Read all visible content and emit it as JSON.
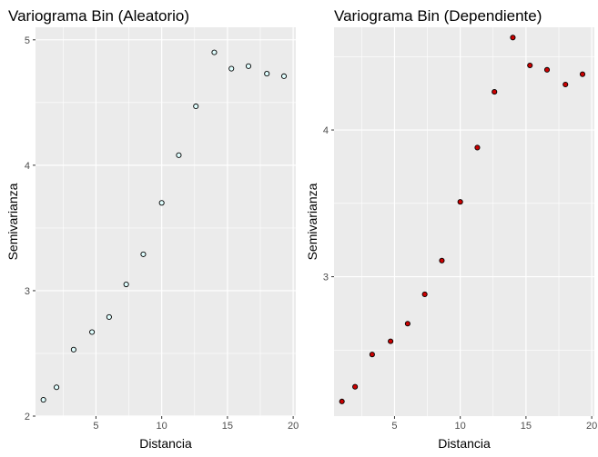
{
  "chart_data": [
    {
      "type": "scatter",
      "title": "Variograma Bin (Aleatorio)",
      "xlabel": "Distancia",
      "ylabel": "Semivarianza",
      "xlim": [
        0.4,
        20.2
      ],
      "ylim": [
        2.0,
        5.1
      ],
      "xticks": [
        5,
        10,
        15,
        20
      ],
      "yticks": [
        2,
        3,
        4,
        5
      ],
      "grid": true,
      "point_fill": "#e0ffff",
      "x": [
        1.0,
        2.0,
        3.3,
        4.7,
        6.0,
        7.3,
        8.6,
        10.0,
        11.3,
        12.6,
        14.0,
        15.3,
        16.6,
        18.0,
        19.3
      ],
      "y": [
        2.13,
        2.23,
        2.53,
        2.67,
        2.79,
        3.05,
        3.29,
        3.7,
        4.08,
        4.47,
        4.9,
        4.77,
        4.79,
        4.73,
        4.71
      ]
    },
    {
      "type": "scatter",
      "title": "Variograma Bin (Dependiente)",
      "xlabel": "Distancia",
      "ylabel": "Semivarianza",
      "xlim": [
        0.4,
        20.2
      ],
      "ylim": [
        2.05,
        4.7
      ],
      "xticks": [
        5,
        10,
        15,
        20
      ],
      "yticks": [
        3,
        4
      ],
      "grid": true,
      "point_fill": "#cc0000",
      "x": [
        1.0,
        2.0,
        3.3,
        4.7,
        6.0,
        7.3,
        8.6,
        10.0,
        11.3,
        12.6,
        14.0,
        15.3,
        16.6,
        18.0,
        19.3
      ],
      "y": [
        2.15,
        2.25,
        2.47,
        2.56,
        2.68,
        2.88,
        3.11,
        3.51,
        3.88,
        4.26,
        4.63,
        4.44,
        4.41,
        4.31,
        4.38
      ]
    }
  ]
}
